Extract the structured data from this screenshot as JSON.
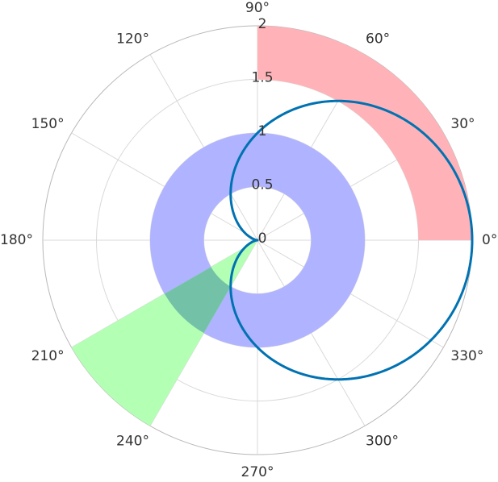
{
  "chart_data": {
    "type": "polar",
    "angle_unit": "degrees",
    "angle_ticks": [
      0,
      30,
      60,
      90,
      120,
      150,
      180,
      210,
      240,
      270,
      300,
      330
    ],
    "angle_tick_labels": [
      "0°",
      "30°",
      "60°",
      "90°",
      "120°",
      "150°",
      "180°",
      "210°",
      "240°",
      "270°",
      "300°",
      "330°"
    ],
    "radial_ticks": [
      0,
      0.5,
      1,
      1.5,
      2
    ],
    "radial_tick_labels": [
      "0",
      "0.5",
      "1",
      "1.5",
      "2"
    ],
    "rlim": [
      0,
      2
    ],
    "grid": true,
    "sectors": [
      {
        "theta_start": 0,
        "theta_end": 90,
        "r_inner": 1.5,
        "r_outer": 2.0,
        "color": "#ffb3b8"
      },
      {
        "theta_start": 0,
        "theta_end": 360,
        "r_inner": 0.5,
        "r_outer": 1.0,
        "color": "#b0b3ff"
      },
      {
        "theta_start": 210,
        "theta_end": 240,
        "r_inner": 0.0,
        "r_outer": 2.0,
        "color": "#b3ffb4",
        "opacity": 1.0
      }
    ],
    "series": [
      {
        "function": "r = 1 + cos(theta)",
        "theta_range": [
          0,
          360
        ],
        "color": "#0072b2",
        "line_width": 3
      }
    ]
  }
}
